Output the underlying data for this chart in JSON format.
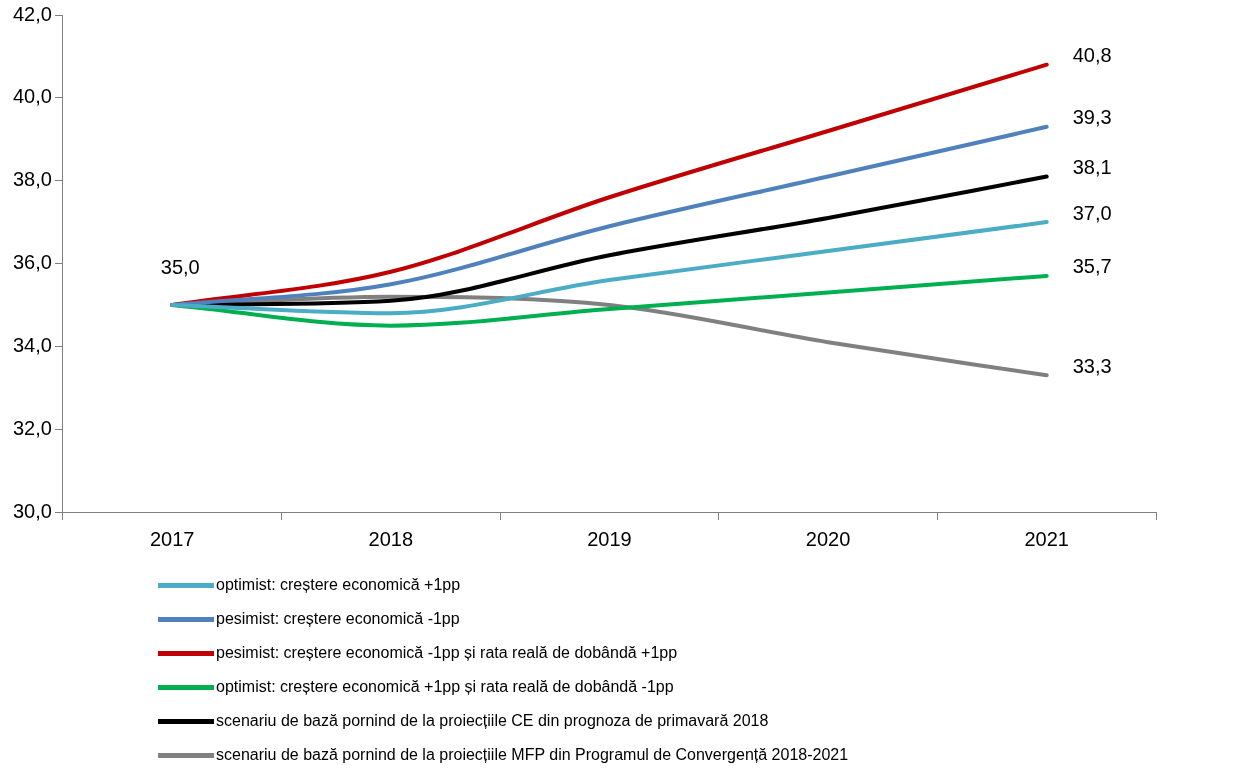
{
  "chart_data": {
    "type": "line",
    "categories": [
      "2017",
      "2018",
      "2019",
      "2020",
      "2021"
    ],
    "ylim": [
      30,
      42
    ],
    "yticks": [
      {
        "value": 30,
        "label": "30,0"
      },
      {
        "value": 32,
        "label": "32,0"
      },
      {
        "value": 34,
        "label": "34,0"
      },
      {
        "value": 36,
        "label": "36,0"
      },
      {
        "value": 38,
        "label": "38,0"
      },
      {
        "value": 40,
        "label": "40,0"
      },
      {
        "value": 42,
        "label": "42,0"
      }
    ],
    "grid": false,
    "legend": "bottom",
    "marker": "none",
    "line_style": "solid",
    "series": [
      {
        "name": "optimist: creștere economică +1pp",
        "color": "#4bacc6",
        "values": [
          35.0,
          34.8,
          35.6,
          36.3,
          37.0
        ],
        "value_labels": [
          null,
          null,
          null,
          null,
          "37,0"
        ]
      },
      {
        "name": "pesimist: creștere economică -1pp",
        "color": "#4f81bd",
        "values": [
          35.0,
          35.5,
          36.9,
          38.1,
          39.3
        ],
        "value_labels": [
          null,
          null,
          null,
          null,
          "39,3"
        ]
      },
      {
        "name": "pesimist: creștere economică -1pp și rata reală de dobândă +1pp",
        "color": "#c00000",
        "values": [
          35.0,
          35.8,
          37.6,
          39.2,
          40.8
        ],
        "value_labels": [
          null,
          null,
          null,
          null,
          "40,8"
        ]
      },
      {
        "name": "optimist: creștere economică +1pp și rata reală de dobândă -1pp",
        "color": "#00b050",
        "values": [
          35.0,
          34.5,
          34.9,
          35.3,
          35.7
        ],
        "value_labels": [
          null,
          null,
          null,
          null,
          "35,7"
        ]
      },
      {
        "name": "scenariu de bază pornind de la proiecțiile CE din prognoza de primavară 2018",
        "color": "#000000",
        "values": [
          35.0,
          35.1,
          36.2,
          37.1,
          38.1
        ],
        "value_labels": [
          "35,0",
          null,
          null,
          null,
          "38,1"
        ]
      },
      {
        "name": "scenariu de bază pornind de la proiecțiile MFP din Programul de Convergență 2018-2021",
        "color": "#808080",
        "values": [
          35.0,
          35.2,
          35.0,
          34.1,
          33.3
        ],
        "value_labels": [
          null,
          null,
          null,
          null,
          "33,3"
        ]
      }
    ]
  }
}
